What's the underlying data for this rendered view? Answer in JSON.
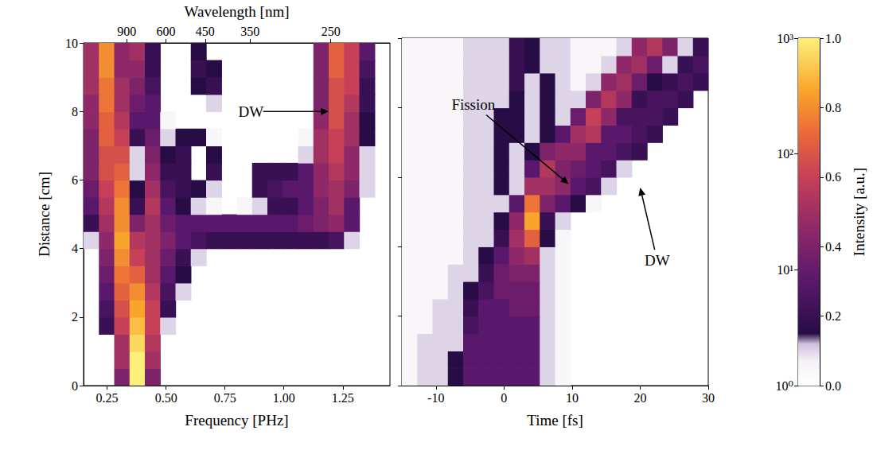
{
  "chart_data": [
    {
      "type": "heatmap",
      "xlabel": "Frequency [PHz]",
      "ylabel": "Distance [cm]",
      "x2label": "Wavelength [nm]",
      "xlim": [
        0.15,
        1.45
      ],
      "xticks": [
        {
          "value": 0.25,
          "label": "0.25"
        },
        {
          "value": 0.5,
          "label": "0.50"
        },
        {
          "value": 0.75,
          "label": "0.75"
        },
        {
          "value": 1.0,
          "label": "1.00"
        },
        {
          "value": 1.25,
          "label": "1.25"
        }
      ],
      "x2ticks": [
        {
          "value": 0.3331,
          "label": "900"
        },
        {
          "value": 0.4997,
          "label": "600"
        },
        {
          "value": 0.6662,
          "label": "450"
        },
        {
          "value": 0.8566,
          "label": "350"
        },
        {
          "value": 1.1992,
          "label": "250"
        }
      ],
      "ylim": [
        0,
        10
      ],
      "yticks": [
        0,
        2,
        4,
        6,
        8,
        10
      ],
      "x": [
        0.1825,
        0.2475,
        0.3125,
        0.3775,
        0.4425,
        0.5075,
        0.5725,
        0.6375,
        0.7025,
        0.7675,
        0.8325,
        0.8975,
        0.9625,
        1.0275,
        1.0925,
        1.1575,
        1.2225,
        1.2875,
        1.3525,
        1.4175
      ],
      "y": [
        0.25,
        0.75,
        1.25,
        1.75,
        2.25,
        2.75,
        3.25,
        3.75,
        4.25,
        4.75,
        5.25,
        5.75,
        6.25,
        6.75,
        7.25,
        7.75,
        8.25,
        8.75,
        9.25,
        9.75
      ],
      "values": [
        [
          0,
          0,
          0.4,
          1.0,
          0.4,
          0,
          0,
          0,
          0,
          0,
          0,
          0,
          0,
          0,
          0,
          0,
          0,
          0,
          0,
          0
        ],
        [
          0,
          0,
          0.5,
          1.0,
          0.5,
          0,
          0,
          0,
          0,
          0,
          0,
          0,
          0,
          0,
          0,
          0,
          0,
          0,
          0,
          0
        ],
        [
          0,
          0,
          0.5,
          0.95,
          0.55,
          0,
          0,
          0,
          0,
          0,
          0,
          0,
          0,
          0,
          0,
          0,
          0,
          0,
          0,
          0
        ],
        [
          0,
          0.2,
          0.6,
          0.9,
          0.6,
          0.1,
          0,
          0,
          0,
          0,
          0,
          0,
          0,
          0,
          0,
          0,
          0,
          0,
          0,
          0
        ],
        [
          0,
          0.25,
          0.65,
          0.85,
          0.6,
          0.2,
          0,
          0,
          0,
          0,
          0,
          0,
          0,
          0,
          0,
          0,
          0,
          0,
          0,
          0
        ],
        [
          0,
          0.3,
          0.7,
          0.8,
          0.55,
          0.25,
          0.1,
          0,
          0,
          0,
          0,
          0,
          0,
          0,
          0,
          0,
          0,
          0,
          0,
          0
        ],
        [
          0,
          0.35,
          0.75,
          0.7,
          0.5,
          0.3,
          0.15,
          0,
          0,
          0,
          0,
          0,
          0,
          0,
          0,
          0,
          0,
          0,
          0,
          0
        ],
        [
          0,
          0.4,
          0.8,
          0.6,
          0.5,
          0.35,
          0.2,
          0.1,
          0,
          0,
          0,
          0,
          0,
          0,
          0,
          0,
          0,
          0,
          0,
          0
        ],
        [
          0.1,
          0.45,
          0.85,
          0.55,
          0.5,
          0.4,
          0.3,
          0.25,
          0.2,
          0.2,
          0.2,
          0.2,
          0.2,
          0.2,
          0.2,
          0.2,
          0.25,
          0.1,
          0,
          0
        ],
        [
          0.2,
          0.5,
          0.8,
          0.4,
          0.5,
          0.35,
          0.3,
          0.3,
          0.3,
          0.3,
          0.3,
          0.3,
          0.3,
          0.3,
          0.35,
          0.4,
          0.45,
          0.3,
          0,
          0
        ],
        [
          0.3,
          0.55,
          0.8,
          0.2,
          0.55,
          0.3,
          0.15,
          0.1,
          0.05,
          0,
          0.05,
          0.1,
          0.2,
          0.2,
          0.3,
          0.4,
          0.5,
          0.3,
          0,
          0
        ],
        [
          0.35,
          0.6,
          0.75,
          0.15,
          0.5,
          0.25,
          0.2,
          0.15,
          0.1,
          0,
          0,
          0.2,
          0.25,
          0.3,
          0.3,
          0.45,
          0.5,
          0.4,
          0.1,
          0
        ],
        [
          0.4,
          0.65,
          0.7,
          0.1,
          0.45,
          0.2,
          0.2,
          0,
          0.2,
          0,
          0,
          0.2,
          0.2,
          0.2,
          0.3,
          0.45,
          0.55,
          0.45,
          0.1,
          0
        ],
        [
          0.4,
          0.65,
          0.65,
          0.1,
          0.4,
          0.15,
          0.2,
          0,
          0.15,
          0,
          0,
          0,
          0,
          0,
          0.1,
          0.5,
          0.6,
          0.45,
          0.1,
          0
        ],
        [
          0.4,
          0.7,
          0.6,
          0.2,
          0.35,
          0.1,
          0.15,
          0.15,
          0.05,
          0,
          0,
          0,
          0,
          0,
          0.05,
          0.5,
          0.6,
          0.5,
          0.15,
          0
        ],
        [
          0.45,
          0.7,
          0.55,
          0.3,
          0.3,
          0.05,
          0,
          0,
          0,
          0,
          0,
          0,
          0,
          0,
          0,
          0.45,
          0.65,
          0.5,
          0.15,
          0
        ],
        [
          0.45,
          0.75,
          0.5,
          0.35,
          0.3,
          0,
          0,
          0,
          0.1,
          0,
          0,
          0,
          0,
          0,
          0,
          0.4,
          0.65,
          0.55,
          0.2,
          0
        ],
        [
          0.5,
          0.75,
          0.5,
          0.4,
          0.25,
          0,
          0,
          0.15,
          0.2,
          0,
          0,
          0,
          0,
          0,
          0,
          0.4,
          0.65,
          0.6,
          0.2,
          0
        ],
        [
          0.5,
          0.8,
          0.45,
          0.45,
          0.2,
          0,
          0,
          0.2,
          0.15,
          0,
          0,
          0,
          0,
          0,
          0,
          0.4,
          0.7,
          0.6,
          0.25,
          0
        ],
        [
          0.5,
          0.8,
          0.45,
          0.5,
          0.2,
          0,
          0,
          0.15,
          0,
          0,
          0,
          0,
          0,
          0,
          0,
          0.4,
          0.7,
          0.6,
          0.3,
          0
        ]
      ],
      "annotations": [
        {
          "text": "DW",
          "x": 0.86,
          "y": 8.0,
          "arrow_to": [
            1.19,
            8.0
          ]
        }
      ]
    },
    {
      "type": "heatmap",
      "xlabel": "Time [fs]",
      "tick_labels": "x",
      "xlim": [
        -15,
        30
      ],
      "xticks": [
        -10,
        0,
        10,
        20,
        30
      ],
      "ylim": [
        0,
        10
      ],
      "yticks": [
        0,
        2,
        4,
        6,
        8,
        10
      ],
      "x": [
        -13.875,
        -11.625,
        -9.375,
        -7.125,
        -4.875,
        -2.625,
        -0.375,
        1.875,
        4.125,
        6.375,
        8.625,
        10.875,
        13.125,
        15.375,
        17.625,
        19.875,
        22.125,
        24.375,
        26.625,
        28.875
      ],
      "y": [
        0.25,
        0.75,
        1.25,
        1.75,
        2.25,
        2.75,
        3.25,
        3.75,
        4.25,
        4.75,
        5.25,
        5.75,
        6.25,
        6.75,
        7.25,
        7.75,
        8.25,
        8.75,
        9.25,
        9.75
      ],
      "values": [
        [
          0.05,
          0.1,
          0.1,
          0.15,
          0.3,
          0.3,
          0.3,
          0.3,
          0.3,
          0.1,
          0.05,
          0,
          0,
          0,
          0,
          0,
          0,
          0,
          0,
          0
        ],
        [
          0.05,
          0.1,
          0.1,
          0.15,
          0.3,
          0.3,
          0.3,
          0.3,
          0.3,
          0.1,
          0.05,
          0,
          0,
          0,
          0,
          0,
          0,
          0,
          0,
          0
        ],
        [
          0.05,
          0.1,
          0.1,
          0.1,
          0.3,
          0.3,
          0.3,
          0.3,
          0.3,
          0.1,
          0.05,
          0,
          0,
          0,
          0,
          0,
          0,
          0,
          0,
          0
        ],
        [
          0.05,
          0.05,
          0.1,
          0.1,
          0.25,
          0.3,
          0.3,
          0.3,
          0.3,
          0.1,
          0.05,
          0,
          0,
          0,
          0,
          0,
          0,
          0,
          0,
          0
        ],
        [
          0.05,
          0.05,
          0.1,
          0.1,
          0.2,
          0.3,
          0.3,
          0.35,
          0.35,
          0.1,
          0.05,
          0,
          0,
          0,
          0,
          0,
          0,
          0,
          0,
          0
        ],
        [
          0.05,
          0.05,
          0.05,
          0.1,
          0.15,
          0.25,
          0.35,
          0.35,
          0.35,
          0.1,
          0.05,
          0,
          0,
          0,
          0,
          0,
          0,
          0,
          0,
          0
        ],
        [
          0.05,
          0.05,
          0.05,
          0.1,
          0.1,
          0.2,
          0.35,
          0.4,
          0.4,
          0.1,
          0.05,
          0,
          0,
          0,
          0,
          0,
          0,
          0,
          0,
          0
        ],
        [
          0.05,
          0.05,
          0.05,
          0.05,
          0.1,
          0.15,
          0.3,
          0.45,
          0.5,
          0.1,
          0.05,
          0,
          0,
          0,
          0,
          0,
          0,
          0,
          0,
          0
        ],
        [
          0.05,
          0.05,
          0.05,
          0.05,
          0.1,
          0.1,
          0.2,
          0.5,
          0.7,
          0.15,
          0.05,
          0,
          0,
          0,
          0,
          0,
          0,
          0,
          0,
          0
        ],
        [
          0.05,
          0.05,
          0.05,
          0.05,
          0.1,
          0.1,
          0.15,
          0.45,
          0.85,
          0.2,
          0.1,
          0,
          0,
          0,
          0,
          0,
          0,
          0,
          0,
          0
        ],
        [
          0.05,
          0.05,
          0.05,
          0.05,
          0.1,
          0.1,
          0.1,
          0.3,
          0.75,
          0.4,
          0.3,
          0.15,
          0.05,
          0,
          0,
          0,
          0,
          0,
          0,
          0
        ],
        [
          0.05,
          0.05,
          0.05,
          0.05,
          0.1,
          0.1,
          0.15,
          0.1,
          0.5,
          0.5,
          0.45,
          0.3,
          0.25,
          0.1,
          0,
          0,
          0,
          0,
          0,
          0
        ],
        [
          0.05,
          0.05,
          0.05,
          0.05,
          0.1,
          0.1,
          0.15,
          0.1,
          0.3,
          0.55,
          0.4,
          0.35,
          0.3,
          0.25,
          0.1,
          0,
          0,
          0,
          0,
          0
        ],
        [
          0.05,
          0.05,
          0.05,
          0.05,
          0.1,
          0.1,
          0.15,
          0.1,
          0.15,
          0.4,
          0.45,
          0.45,
          0.3,
          0.3,
          0.25,
          0.2,
          0,
          0,
          0,
          0
        ],
        [
          0.05,
          0.05,
          0.05,
          0.05,
          0.1,
          0.1,
          0.15,
          0.15,
          0.1,
          0.15,
          0.3,
          0.5,
          0.55,
          0.3,
          0.3,
          0.25,
          0.2,
          0,
          0,
          0
        ],
        [
          0.05,
          0.05,
          0.05,
          0.05,
          0.1,
          0.1,
          0.15,
          0.15,
          0.1,
          0.15,
          0.1,
          0.35,
          0.6,
          0.45,
          0.25,
          0.25,
          0.25,
          0.2,
          0,
          0
        ],
        [
          0.05,
          0.05,
          0.05,
          0.05,
          0.1,
          0.1,
          0.1,
          0.15,
          0.1,
          0.15,
          0.1,
          0.1,
          0.4,
          0.55,
          0.45,
          0.2,
          0.25,
          0.25,
          0.2,
          0
        ],
        [
          0.05,
          0.05,
          0.05,
          0.05,
          0.1,
          0.1,
          0.1,
          0.2,
          0.1,
          0.15,
          0.1,
          0.05,
          0.1,
          0.45,
          0.5,
          0.35,
          0.15,
          0.2,
          0.25,
          0.2
        ],
        [
          0.05,
          0.05,
          0.05,
          0.05,
          0.1,
          0.1,
          0.1,
          0.2,
          0.15,
          0.1,
          0.1,
          0.05,
          0.05,
          0.1,
          0.45,
          0.5,
          0.35,
          0.1,
          0.2,
          0.25
        ],
        [
          0.05,
          0.05,
          0.05,
          0.05,
          0.1,
          0.1,
          0.1,
          0.2,
          0.15,
          0.1,
          0.1,
          0.05,
          0.05,
          0.05,
          0.1,
          0.45,
          0.55,
          0.4,
          0.1,
          0.2
        ]
      ],
      "annotations": [
        {
          "text": "Fission",
          "x": -4.5,
          "y": 8.1,
          "arrow_to": [
            9.5,
            5.8
          ]
        },
        {
          "text": "DW",
          "x": 22.5,
          "y": 3.6,
          "arrow_to": [
            20.0,
            5.7
          ]
        }
      ]
    }
  ],
  "colorbar": {
    "label": "Intensity [a.u.]",
    "lim": [
      0,
      1
    ],
    "ticks": [
      {
        "value": 0,
        "label": "0.0"
      },
      0.2,
      0.4,
      0.6,
      0.8,
      {
        "value": 1,
        "label": "1.0"
      }
    ],
    "log_lim": [
      1,
      1000
    ],
    "log_ticks": [
      {
        "value": 1,
        "label": "10⁰"
      },
      {
        "value": 10,
        "label": "10¹"
      },
      {
        "value": 100,
        "label": "10²"
      },
      {
        "value": 1000,
        "label": "10³"
      }
    ]
  }
}
